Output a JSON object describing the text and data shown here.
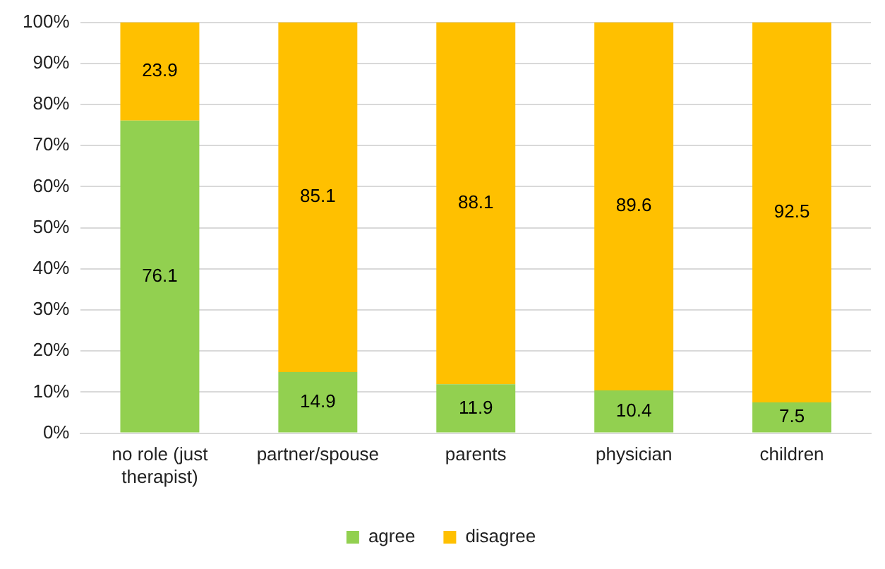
{
  "chart_data": {
    "type": "bar",
    "stacked": true,
    "categories": [
      "no role (just therapist)",
      "partner/spouse",
      "parents",
      "physician",
      "children"
    ],
    "series": [
      {
        "name": "agree",
        "color": "#92d050",
        "values": [
          76.1,
          14.9,
          11.9,
          10.4,
          7.5
        ]
      },
      {
        "name": "disagree",
        "color": "#ffc000",
        "values": [
          23.9,
          85.1,
          88.1,
          89.6,
          92.5
        ]
      }
    ],
    "ylim": [
      0,
      100
    ],
    "yticks": [
      {
        "value": 0,
        "label": "0%"
      },
      {
        "value": 10,
        "label": "10%"
      },
      {
        "value": 20,
        "label": "20%"
      },
      {
        "value": 30,
        "label": "30%"
      },
      {
        "value": 40,
        "label": "40%"
      },
      {
        "value": 50,
        "label": "50%"
      },
      {
        "value": 60,
        "label": "60%"
      },
      {
        "value": 70,
        "label": "70%"
      },
      {
        "value": 80,
        "label": "80%"
      },
      {
        "value": 90,
        "label": "90%"
      },
      {
        "value": 100,
        "label": "100%"
      }
    ],
    "grid": "y",
    "legend": "bottom",
    "data_labels": true
  }
}
